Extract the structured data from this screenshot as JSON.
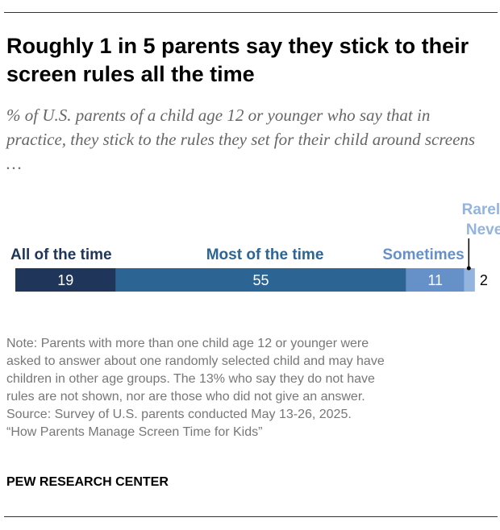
{
  "title": "Roughly 1 in 5 parents say they stick to their screen rules all the time",
  "subtitle": "% of U.S. parents of a child age 12 or younger who say that in practice, they stick to the rules they set for their child around screens …",
  "chart_data": {
    "type": "bar",
    "orientation": "horizontal",
    "stacked": true,
    "categories": [
      "All of the time",
      "Most of the time",
      "Sometimes",
      "Rarely/ Never"
    ],
    "values": [
      19,
      55,
      11,
      2
    ],
    "colors": [
      "#1f3559",
      "#2c6594",
      "#6690c8",
      "#93b4de"
    ],
    "label_colors": [
      "#1f3559",
      "#2c6594",
      "#6690c8",
      "#93b4de"
    ]
  },
  "note": [
    "Note: Parents with more than one child age 12 or younger were",
    "asked to answer about one randomly selected child and may have",
    "children in other age groups. The 13% who say they do not have",
    "rules are not shown, nor are those who did not give an answer.",
    "Source: Survey of U.S. parents conducted May 13-26, 2025.",
    "“How Parents Manage Screen Time for Kids”"
  ],
  "brand": "PEW RESEARCH CENTER"
}
